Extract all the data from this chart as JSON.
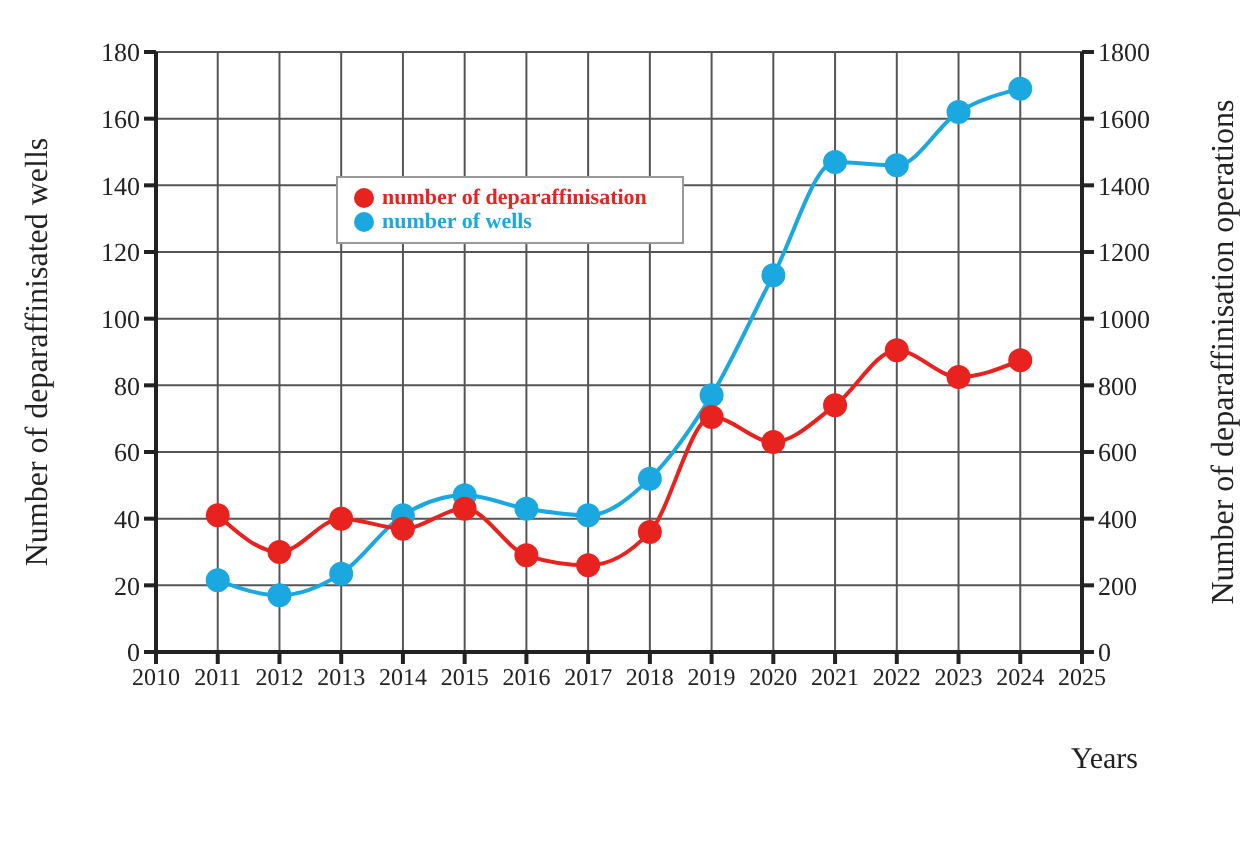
{
  "chart_data": {
    "type": "line",
    "xlabel": "Years",
    "ylabel": "Number of deparaffinisated wells",
    "y2label": "Number of deparaffinisation operations",
    "x": [
      2011,
      2012,
      2013,
      2014,
      2015,
      2016,
      2017,
      2018,
      2019,
      2020,
      2021,
      2022,
      2023,
      2024
    ],
    "series": [
      {
        "name": "number of wells",
        "color": "#1ba8e0",
        "values": [
          21.5,
          17,
          23.5,
          41,
          47,
          43,
          41,
          52,
          77,
          113,
          147,
          146,
          162,
          169
        ]
      },
      {
        "name": "number of deparaffinisation",
        "color": "#e8231f",
        "axis": "y2",
        "values": [
          410,
          300,
          400,
          370,
          430,
          290,
          260,
          360,
          705,
          630,
          740,
          905,
          825,
          875
        ]
      }
    ],
    "xlim": [
      2010,
      2025
    ],
    "xticks": [
      2010,
      2011,
      2012,
      2013,
      2014,
      2015,
      2016,
      2017,
      2018,
      2019,
      2020,
      2021,
      2022,
      2023,
      2024,
      2025
    ],
    "ylim": [
      0,
      180
    ],
    "yticks": [
      0,
      20,
      40,
      60,
      80,
      100,
      120,
      140,
      160,
      180
    ],
    "y2lim": [
      0,
      1800
    ],
    "y2ticks": [
      0,
      200,
      400,
      600,
      800,
      1000,
      1200,
      1400,
      1600,
      1800
    ],
    "grid": true,
    "legend": "top left",
    "marker": "circle",
    "line_style": "solid"
  }
}
